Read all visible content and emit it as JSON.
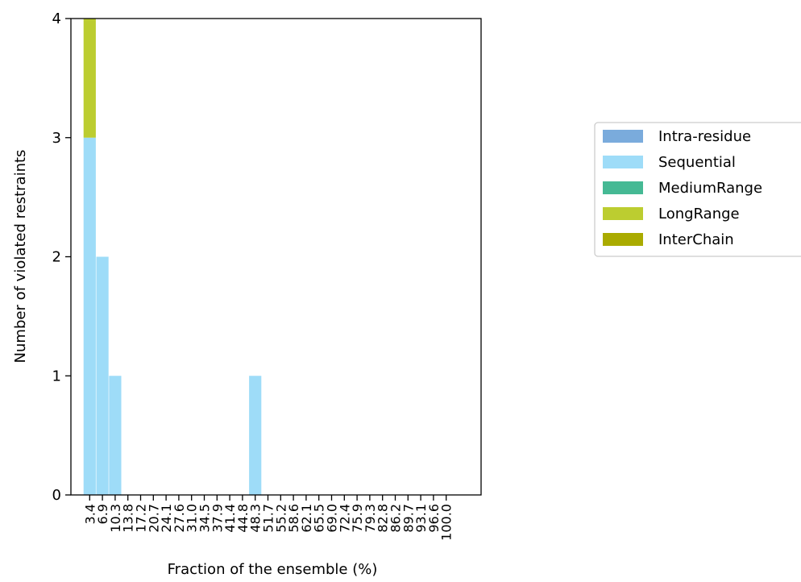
{
  "chart_data": {
    "type": "bar",
    "stacked": true,
    "title": "",
    "xlabel": "Fraction of the ensemble (%)",
    "ylabel": "Number of violated restraints",
    "ylim": [
      0,
      4
    ],
    "yticks": [
      "0",
      "1",
      "2",
      "3",
      "4"
    ],
    "categories": [
      "3.4",
      "6.9",
      "10.3",
      "13.8",
      "17.2",
      "20.7",
      "24.1",
      "27.6",
      "31.0",
      "34.5",
      "37.9",
      "41.4",
      "44.8",
      "48.3",
      "51.7",
      "55.2",
      "58.6",
      "62.1",
      "65.5",
      "69.0",
      "72.4",
      "75.9",
      "79.3",
      "82.8",
      "86.2",
      "89.7",
      "93.1",
      "96.6",
      "100.0"
    ],
    "series": [
      {
        "name": "Intra-residue",
        "color": "#7aabdc",
        "values": [
          0,
          0,
          0,
          0,
          0,
          0,
          0,
          0,
          0,
          0,
          0,
          0,
          0,
          0,
          0,
          0,
          0,
          0,
          0,
          0,
          0,
          0,
          0,
          0,
          0,
          0,
          0,
          0,
          0
        ]
      },
      {
        "name": "Sequential",
        "color": "#9edcf8",
        "values": [
          3,
          2,
          1,
          0,
          0,
          0,
          0,
          0,
          0,
          0,
          0,
          0,
          0,
          1,
          0,
          0,
          0,
          0,
          0,
          0,
          0,
          0,
          0,
          0,
          0,
          0,
          0,
          0,
          0
        ]
      },
      {
        "name": "MediumRange",
        "color": "#45b994",
        "values": [
          0,
          0,
          0,
          0,
          0,
          0,
          0,
          0,
          0,
          0,
          0,
          0,
          0,
          0,
          0,
          0,
          0,
          0,
          0,
          0,
          0,
          0,
          0,
          0,
          0,
          0,
          0,
          0,
          0
        ]
      },
      {
        "name": "LongRange",
        "color": "#bccd30",
        "values": [
          1,
          0,
          0,
          0,
          0,
          0,
          0,
          0,
          0,
          0,
          0,
          0,
          0,
          0,
          0,
          0,
          0,
          0,
          0,
          0,
          0,
          0,
          0,
          0,
          0,
          0,
          0,
          0,
          0
        ]
      },
      {
        "name": "InterChain",
        "color": "#aaab00",
        "values": [
          0,
          0,
          0,
          0,
          0,
          0,
          0,
          0,
          0,
          0,
          0,
          0,
          0,
          0,
          0,
          0,
          0,
          0,
          0,
          0,
          0,
          0,
          0,
          0,
          0,
          0,
          0,
          0,
          0
        ]
      }
    ],
    "legend_placement": "right",
    "grid": false
  }
}
